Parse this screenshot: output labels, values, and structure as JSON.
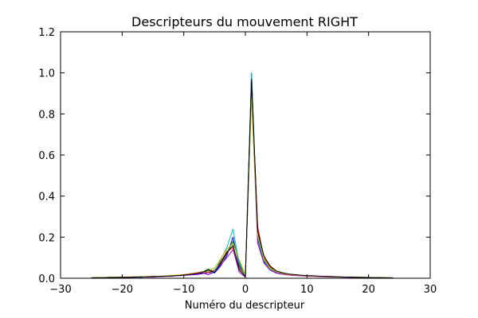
{
  "chart_data": {
    "type": "line",
    "title": "Descripteurs du mouvement RIGHT",
    "xlabel": "Numéro du descripteur",
    "ylabel": "",
    "xlim": [
      -30,
      30
    ],
    "ylim": [
      0,
      1.2
    ],
    "x_ticks": [
      -30,
      -20,
      -10,
      0,
      10,
      20,
      30
    ],
    "y_ticks": [
      0.0,
      0.2,
      0.4,
      0.6,
      0.8,
      1.0,
      1.2
    ],
    "x_tick_labels": [
      "−30",
      "−20",
      "−10",
      "0",
      "10",
      "20",
      "30"
    ],
    "y_tick_labels": [
      "0.0",
      "0.2",
      "0.4",
      "0.6",
      "0.8",
      "1.0",
      "1.2"
    ],
    "grid": false,
    "x": [
      -25,
      -24,
      -23,
      -22,
      -21,
      -20,
      -19,
      -18,
      -17,
      -16,
      -15,
      -14,
      -13,
      -12,
      -11,
      -10,
      -9,
      -8,
      -7,
      -6,
      -5,
      -4,
      -3,
      -2,
      -1,
      0,
      1,
      2,
      3,
      4,
      5,
      6,
      7,
      8,
      9,
      10,
      11,
      12,
      13,
      14,
      15,
      16,
      17,
      18,
      19,
      20,
      21,
      22,
      23,
      24
    ],
    "series": [
      {
        "color": "#0000ff",
        "values": [
          0.002,
          0.003,
          0.002,
          0.004,
          0.003,
          0.005,
          0.004,
          0.006,
          0.005,
          0.007,
          0.006,
          0.008,
          0.009,
          0.01,
          0.012,
          0.014,
          0.016,
          0.018,
          0.022,
          0.03,
          0.026,
          0.06,
          0.11,
          0.2,
          0.06,
          0.008,
          1.0,
          0.19,
          0.08,
          0.04,
          0.025,
          0.02,
          0.016,
          0.014,
          0.012,
          0.011,
          0.01,
          0.009,
          0.008,
          0.007,
          0.006,
          0.006,
          0.005,
          0.005,
          0.004,
          0.004,
          0.003,
          0.003,
          0.002,
          0.002
        ]
      },
      {
        "color": "#008000",
        "values": [
          0.003,
          0.002,
          0.004,
          0.003,
          0.005,
          0.004,
          0.006,
          0.005,
          0.008,
          0.006,
          0.009,
          0.008,
          0.01,
          0.012,
          0.014,
          0.016,
          0.02,
          0.024,
          0.03,
          0.045,
          0.03,
          0.07,
          0.12,
          0.18,
          0.08,
          0.01,
          0.95,
          0.22,
          0.09,
          0.05,
          0.03,
          0.022,
          0.018,
          0.015,
          0.013,
          0.012,
          0.01,
          0.009,
          0.008,
          0.008,
          0.007,
          0.006,
          0.006,
          0.005,
          0.005,
          0.004,
          0.004,
          0.003,
          0.003,
          0.002
        ]
      },
      {
        "color": "#ff0000",
        "values": [
          0.002,
          0.004,
          0.003,
          0.005,
          0.004,
          0.006,
          0.005,
          0.007,
          0.006,
          0.008,
          0.007,
          0.009,
          0.011,
          0.013,
          0.015,
          0.018,
          0.022,
          0.026,
          0.032,
          0.028,
          0.04,
          0.08,
          0.13,
          0.15,
          0.05,
          0.012,
          0.93,
          0.25,
          0.1,
          0.055,
          0.035,
          0.025,
          0.02,
          0.016,
          0.014,
          0.012,
          0.011,
          0.01,
          0.009,
          0.008,
          0.007,
          0.006,
          0.005,
          0.005,
          0.004,
          0.004,
          0.003,
          0.003,
          0.002,
          0.002
        ]
      },
      {
        "color": "#00bfbf",
        "values": [
          0.003,
          0.003,
          0.004,
          0.004,
          0.005,
          0.005,
          0.006,
          0.006,
          0.007,
          0.007,
          0.008,
          0.009,
          0.01,
          0.012,
          0.013,
          0.015,
          0.018,
          0.022,
          0.026,
          0.02,
          0.035,
          0.09,
          0.15,
          0.24,
          0.07,
          0.006,
          1.0,
          0.2,
          0.085,
          0.045,
          0.028,
          0.021,
          0.017,
          0.015,
          0.013,
          0.011,
          0.01,
          0.009,
          0.008,
          0.007,
          0.007,
          0.006,
          0.005,
          0.005,
          0.004,
          0.004,
          0.003,
          0.003,
          0.003,
          0.002
        ]
      },
      {
        "color": "#bf00bf",
        "values": [
          0.002,
          0.002,
          0.003,
          0.003,
          0.004,
          0.004,
          0.005,
          0.005,
          0.006,
          0.006,
          0.007,
          0.008,
          0.009,
          0.011,
          0.012,
          0.014,
          0.017,
          0.02,
          0.025,
          0.018,
          0.03,
          0.065,
          0.1,
          0.14,
          0.03,
          0.005,
          0.9,
          0.17,
          0.075,
          0.04,
          0.026,
          0.02,
          0.016,
          0.013,
          0.012,
          0.01,
          0.009,
          0.008,
          0.007,
          0.007,
          0.006,
          0.005,
          0.005,
          0.004,
          0.004,
          0.003,
          0.003,
          0.002,
          0.002,
          0.002
        ]
      },
      {
        "color": "#bfbf00",
        "values": [
          0.003,
          0.004,
          0.004,
          0.005,
          0.005,
          0.006,
          0.006,
          0.007,
          0.007,
          0.008,
          0.009,
          0.01,
          0.011,
          0.013,
          0.015,
          0.017,
          0.021,
          0.025,
          0.03,
          0.035,
          0.05,
          0.095,
          0.14,
          0.17,
          0.09,
          0.015,
          0.88,
          0.21,
          0.095,
          0.05,
          0.032,
          0.024,
          0.019,
          0.016,
          0.014,
          0.012,
          0.011,
          0.01,
          0.009,
          0.008,
          0.007,
          0.006,
          0.006,
          0.005,
          0.005,
          0.004,
          0.004,
          0.003,
          0.003,
          0.002
        ]
      },
      {
        "color": "#000000",
        "values": [
          0.002,
          0.003,
          0.003,
          0.004,
          0.004,
          0.005,
          0.005,
          0.006,
          0.006,
          0.007,
          0.008,
          0.009,
          0.01,
          0.011,
          0.013,
          0.015,
          0.019,
          0.023,
          0.028,
          0.04,
          0.028,
          0.075,
          0.125,
          0.16,
          0.04,
          0.008,
          0.97,
          0.23,
          0.11,
          0.06,
          0.036,
          0.027,
          0.021,
          0.018,
          0.015,
          0.013,
          0.012,
          0.01,
          0.009,
          0.008,
          0.007,
          0.006,
          0.006,
          0.005,
          0.004,
          0.004,
          0.003,
          0.003,
          0.002,
          0.002
        ]
      }
    ]
  }
}
